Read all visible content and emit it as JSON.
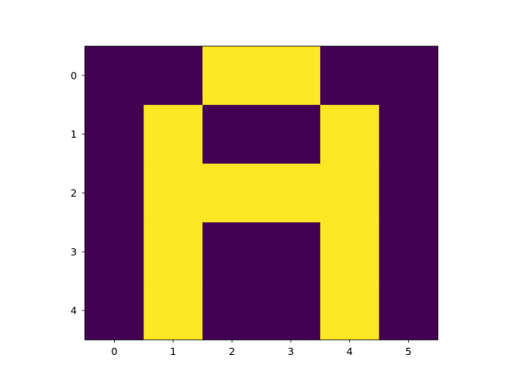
{
  "chart_data": {
    "type": "heatmap",
    "title": "",
    "xlabel": "",
    "ylabel": "",
    "x_ticks": [
      "0",
      "1",
      "2",
      "3",
      "4",
      "5"
    ],
    "y_ticks": [
      "0",
      "1",
      "2",
      "3",
      "4"
    ],
    "xlim": [
      -0.5,
      5.5
    ],
    "ylim": [
      4.5,
      -0.5
    ],
    "grid": false,
    "colormap": "viridis",
    "value_colors": {
      "0": "#440154",
      "1": "#fde725"
    },
    "values": [
      [
        0,
        0,
        1,
        1,
        0,
        0
      ],
      [
        0,
        1,
        0,
        0,
        1,
        0
      ],
      [
        0,
        1,
        1,
        1,
        1,
        0
      ],
      [
        0,
        1,
        0,
        0,
        1,
        0
      ],
      [
        0,
        1,
        0,
        0,
        1,
        0
      ]
    ]
  }
}
